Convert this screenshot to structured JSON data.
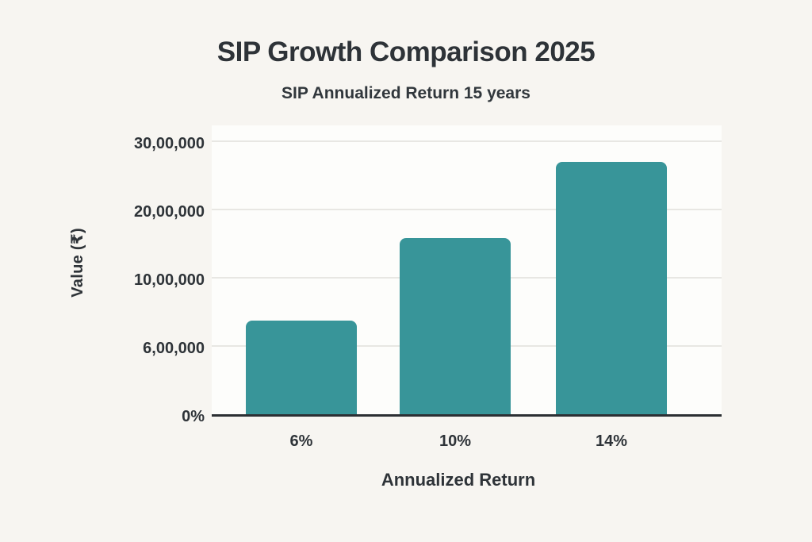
{
  "chart_data": {
    "type": "bar",
    "title": "SIP Growth Comparison 2025",
    "subtitle": "SIP Annualized Return 15 years",
    "xlabel": "Annualized Return",
    "ylabel": "Value (₹)",
    "categories": [
      "6%",
      "10%",
      "14%"
    ],
    "values": [
      750000,
      1580000,
      2700000
    ],
    "y_ticks": [
      {
        "label": "0%",
        "value": 0
      },
      {
        "label": "6,00,000",
        "value": 600000
      },
      {
        "label": "10,00,000",
        "value": 1000000
      },
      {
        "label": "20,00,000",
        "value": 2000000
      },
      {
        "label": "30,00,000",
        "value": 3000000
      }
    ],
    "ylim": [
      0,
      3000000
    ],
    "grid": true,
    "legend": false,
    "bar_color": "#389599"
  },
  "colors": {
    "background": "#f7f5f1",
    "plot_background": "#fdfdfb",
    "bar": "#389599",
    "gridline": "#e8e7e3",
    "axis_line": "#2c2f33",
    "text": "#2e3338"
  }
}
